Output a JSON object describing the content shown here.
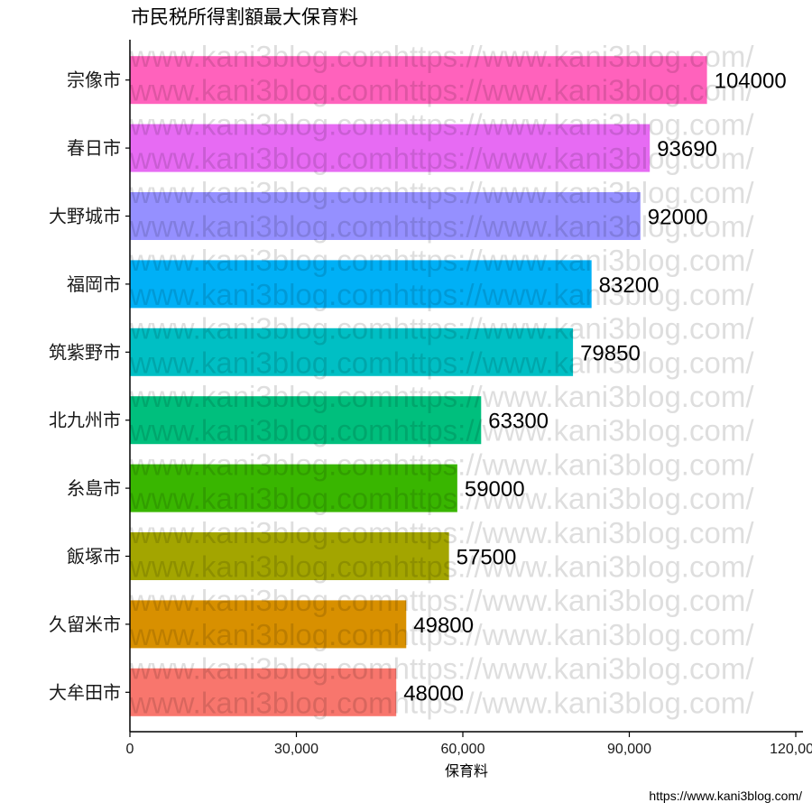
{
  "chart_data": {
    "type": "bar",
    "orientation": "horizontal",
    "title": "市民税所得割額最大保育料",
    "xlabel": "保育料",
    "ylabel": "",
    "caption": "https://www.kani3blog.com/",
    "watermark": "www.kani3blog.comhttps://www.kani3blog.com/",
    "xlim": [
      0,
      120000
    ],
    "xticks": [
      0,
      30000,
      60000,
      90000,
      120000
    ],
    "xtick_labels": [
      "0",
      "30,000",
      "60,000",
      "90,000",
      "120,000"
    ],
    "grid": false,
    "legend": "none",
    "categories": [
      "宗像市",
      "春日市",
      "大野城市",
      "福岡市",
      "筑紫野市",
      "北九州市",
      "糸島市",
      "飯塚市",
      "久留米市",
      "大牟田市"
    ],
    "values": [
      104000,
      93690,
      92000,
      83200,
      79850,
      63300,
      59000,
      57500,
      49800,
      48000
    ],
    "value_labels": [
      "104000",
      "93690",
      "92000",
      "83200",
      "79850",
      "63300",
      "59000",
      "57500",
      "49800",
      "48000"
    ],
    "colors": [
      "#FF62BC",
      "#E76BF3",
      "#9590FF",
      "#00B0F6",
      "#00BFC4",
      "#00BF7D",
      "#39B600",
      "#A3A500",
      "#D89000",
      "#F8766D"
    ]
  }
}
